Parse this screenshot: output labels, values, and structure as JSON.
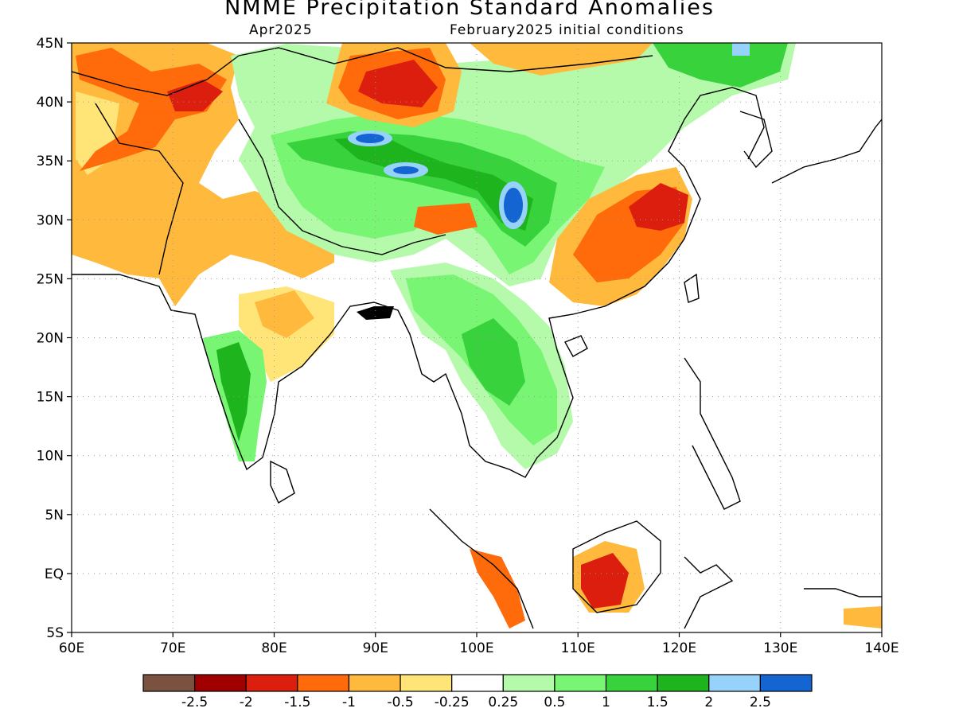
{
  "title": "NMME Precipitation Standard Anomalies",
  "subtitle_left": "Apr2025",
  "subtitle_right": "February2025 initial conditions",
  "map": {
    "lon_range": [
      60,
      140
    ],
    "lat_range": [
      -5,
      45
    ],
    "lon_ticks": [
      {
        "value": 60,
        "label": "60E"
      },
      {
        "value": 70,
        "label": "70E"
      },
      {
        "value": 80,
        "label": "80E"
      },
      {
        "value": 90,
        "label": "90E"
      },
      {
        "value": 100,
        "label": "100E"
      },
      {
        "value": 110,
        "label": "110E"
      },
      {
        "value": 120,
        "label": "120E"
      },
      {
        "value": 130,
        "label": "130E"
      },
      {
        "value": 140,
        "label": "140E"
      }
    ],
    "lat_ticks": [
      {
        "value": 45,
        "label": "45N"
      },
      {
        "value": 40,
        "label": "40N"
      },
      {
        "value": 35,
        "label": "35N"
      },
      {
        "value": 30,
        "label": "30N"
      },
      {
        "value": 25,
        "label": "25N"
      },
      {
        "value": 20,
        "label": "20N"
      },
      {
        "value": 15,
        "label": "15N"
      },
      {
        "value": 10,
        "label": "10N"
      },
      {
        "value": 5,
        "label": "5N"
      },
      {
        "value": 0,
        "label": "EQ"
      },
      {
        "value": -5,
        "label": "5S"
      }
    ]
  },
  "colorbar": {
    "colors": [
      "#7b5140",
      "#a00000",
      "#dc1e0e",
      "#ff6a0a",
      "#ffb93c",
      "#ffe478",
      "#ffffff",
      "#b4faaa",
      "#78f572",
      "#37d23c",
      "#1eb41e",
      "#96d2fa",
      "#1464d2"
    ],
    "labels": [
      "-2.5",
      "-2",
      "-1.5",
      "-1",
      "-0.5",
      "-0.25",
      "0.25",
      "0.5",
      "1",
      "1.5",
      "2",
      "2.5"
    ]
  }
}
